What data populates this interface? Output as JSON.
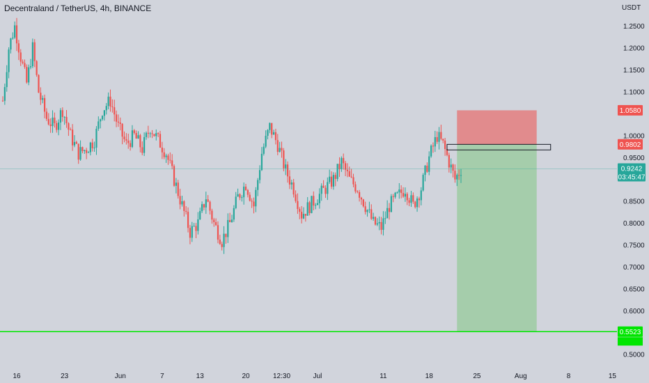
{
  "chart_title": "Decentraland / TetherUS, 4h, BINANCE",
  "currency": "USDT",
  "colors": {
    "background": "#d1d4dc",
    "up": "#26a69a",
    "down": "#ef5350",
    "stop_zone": "#e57373",
    "target_zone": "#81c784",
    "support_line": "#00e600"
  },
  "chart_data": {
    "type": "candlestick",
    "symbol": "Decentraland / TetherUS",
    "interval": "4h",
    "exchange": "BINANCE",
    "ylim": [
      0.47,
      1.31
    ],
    "y_ticks": [
      "1.2500",
      "1.2000",
      "1.1500",
      "1.1000",
      "1.0000",
      "0.9500",
      "0.8500",
      "0.8000",
      "0.7500",
      "0.7000",
      "0.6500",
      "0.6000",
      "0.5000"
    ],
    "x_ticks": [
      "16",
      "23",
      "Jun",
      "7",
      "13",
      "20",
      "12:30",
      "Jul",
      "11",
      "18",
      "25",
      "Aug",
      "8",
      "15"
    ],
    "price_path": [
      [
        0,
        1.08
      ],
      [
        3,
        1.2
      ],
      [
        6,
        1.25
      ],
      [
        9,
        1.18
      ],
      [
        12,
        1.12
      ],
      [
        15,
        1.2
      ],
      [
        18,
        1.1
      ],
      [
        22,
        1.04
      ],
      [
        26,
        1.02
      ],
      [
        30,
        1.06
      ],
      [
        34,
        1.0
      ],
      [
        38,
        0.96
      ],
      [
        42,
        0.97
      ],
      [
        46,
        0.99
      ],
      [
        50,
        1.06
      ],
      [
        54,
        1.08
      ],
      [
        58,
        1.02
      ],
      [
        62,
        0.98
      ],
      [
        66,
        1.0
      ],
      [
        70,
        0.97
      ],
      [
        74,
        1.02
      ],
      [
        78,
        0.99
      ],
      [
        82,
        0.96
      ],
      [
        86,
        0.9
      ],
      [
        90,
        0.84
      ],
      [
        94,
        0.78
      ],
      [
        98,
        0.8
      ],
      [
        102,
        0.86
      ],
      [
        106,
        0.8
      ],
      [
        110,
        0.76
      ],
      [
        114,
        0.8
      ],
      [
        118,
        0.86
      ],
      [
        122,
        0.89
      ],
      [
        126,
        0.84
      ],
      [
        130,
        0.96
      ],
      [
        134,
        1.02
      ],
      [
        138,
        0.98
      ],
      [
        142,
        0.92
      ],
      [
        146,
        0.88
      ],
      [
        150,
        0.82
      ],
      [
        154,
        0.84
      ],
      [
        158,
        0.86
      ],
      [
        162,
        0.88
      ],
      [
        166,
        0.9
      ],
      [
        170,
        0.94
      ],
      [
        174,
        0.9
      ],
      [
        178,
        0.88
      ],
      [
        182,
        0.84
      ],
      [
        186,
        0.8
      ],
      [
        190,
        0.79
      ],
      [
        194,
        0.84
      ],
      [
        198,
        0.86
      ],
      [
        202,
        0.88
      ],
      [
        206,
        0.84
      ],
      [
        210,
        0.88
      ],
      [
        214,
        0.95
      ],
      [
        218,
        1.0
      ],
      [
        221,
        0.98
      ],
      [
        224,
        0.94
      ],
      [
        227,
        0.9
      ],
      [
        230,
        0.924
      ]
    ],
    "current_price": {
      "value": "0.9242",
      "countdown": "03:45:47",
      "y": 0.9242
    },
    "price_tags": [
      {
        "label": "1.0580",
        "y": 1.058,
        "color": "#ef5350"
      },
      {
        "label": "0.9802",
        "y": 0.9802,
        "color": "#ef5350"
      },
      {
        "label": "0.5523",
        "y": 0.5523,
        "color": "#00e600"
      }
    ],
    "support_level": {
      "label": "0.5523",
      "y": 0.5523
    },
    "position": {
      "stop": 1.058,
      "entry": 0.9802,
      "target": 0.5523
    },
    "entry_box": {
      "top": 0.9802,
      "bottom": 0.9732
    },
    "x_domain": [
      0,
      300
    ],
    "position_x": [
      228,
      268
    ],
    "entry_box_x": [
      223,
      275
    ],
    "tick_x": [
      7,
      31,
      59,
      80,
      99,
      122,
      140,
      158,
      191,
      214,
      238,
      260,
      284,
      306
    ]
  }
}
